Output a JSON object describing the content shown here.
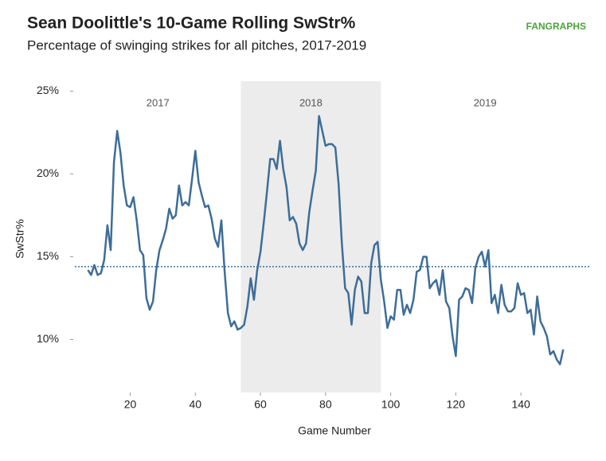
{
  "chart_data": {
    "type": "line",
    "title": "Sean Doolittle's 10-Game Rolling SwStr%",
    "subtitle": "Percentage of swinging strikes for all pitches, 2017-2019",
    "logo": "FANGRAPHS",
    "x_label": "Game Number",
    "y_label": "SwStr%",
    "xlim": [
      3,
      161
    ],
    "ylim": [
      6.8,
      25.6
    ],
    "xticks": [
      20,
      40,
      60,
      80,
      100,
      120,
      140
    ],
    "yticks": [
      {
        "value": 10,
        "label": "10%"
      },
      {
        "value": 15,
        "label": "15%"
      },
      {
        "value": 20,
        "label": "20%"
      },
      {
        "value": 25,
        "label": "25%"
      }
    ],
    "reference_line": 14.4,
    "regions": [
      {
        "label": "2017",
        "x": [
          3,
          54
        ],
        "shaded": false
      },
      {
        "label": "2018",
        "x": [
          54,
          97
        ],
        "shaded": true
      },
      {
        "label": "2019",
        "x": [
          97,
          161
        ],
        "shaded": false
      }
    ],
    "x": [
      7,
      8,
      9,
      10,
      11,
      12,
      13,
      14,
      15,
      16,
      17,
      18,
      19,
      20,
      21,
      22,
      23,
      24,
      25,
      26,
      27,
      28,
      29,
      30,
      31,
      32,
      33,
      34,
      35,
      36,
      37,
      38,
      39,
      40,
      41,
      42,
      43,
      44,
      45,
      46,
      47,
      48,
      49,
      50,
      51,
      52,
      53,
      54,
      55,
      56,
      57,
      58,
      59,
      60,
      61,
      62,
      63,
      64,
      65,
      66,
      67,
      68,
      69,
      70,
      71,
      72,
      73,
      74,
      75,
      76,
      77,
      78,
      79,
      80,
      81,
      82,
      83,
      84,
      85,
      86,
      87,
      88,
      89,
      90,
      91,
      92,
      93,
      94,
      95,
      96,
      97,
      98,
      99,
      100,
      101,
      102,
      103,
      104,
      105,
      106,
      107,
      108,
      109,
      110,
      111,
      112,
      113,
      114,
      115,
      116,
      117,
      118,
      119,
      120,
      121,
      122,
      123,
      124,
      125,
      126,
      127,
      128,
      129,
      130,
      131,
      132,
      133,
      134,
      135,
      136,
      137,
      138,
      139,
      140,
      141,
      142,
      143,
      144,
      145,
      146,
      147,
      148,
      149,
      150,
      151,
      152,
      153
    ],
    "series": [
      {
        "name": "SwStr%",
        "color": "#3e6d99",
        "values": [
          14.2,
          13.9,
          14.5,
          13.9,
          14.0,
          14.8,
          16.9,
          15.4,
          20.7,
          22.6,
          21.3,
          19.3,
          18.1,
          18.0,
          18.6,
          17.2,
          15.4,
          15.1,
          12.5,
          11.8,
          12.3,
          14.2,
          15.4,
          16.0,
          16.7,
          17.9,
          17.3,
          17.5,
          19.3,
          18.1,
          18.3,
          18.1,
          19.7,
          21.4,
          19.5,
          18.7,
          18.0,
          18.1,
          17.3,
          16.1,
          15.6,
          17.2,
          14.1,
          11.6,
          10.8,
          11.1,
          10.6,
          10.7,
          10.9,
          12.0,
          13.7,
          12.4,
          14.2,
          15.3,
          17.0,
          18.9,
          20.9,
          20.9,
          20.3,
          22.0,
          20.3,
          19.2,
          17.2,
          17.4,
          17.0,
          15.8,
          15.4,
          15.8,
          17.7,
          19.0,
          20.2,
          23.5,
          22.6,
          21.7,
          21.8,
          21.8,
          21.6,
          19.4,
          15.8,
          13.1,
          12.8,
          10.9,
          13.0,
          13.8,
          13.5,
          11.6,
          11.6,
          14.6,
          15.7,
          15.9,
          13.6,
          12.3,
          10.7,
          11.4,
          11.2,
          13.0,
          13.0,
          11.5,
          12.1,
          11.6,
          12.4,
          14.1,
          14.2,
          15.0,
          15.0,
          13.1,
          13.4,
          13.6,
          12.7,
          14.2,
          12.3,
          11.9,
          10.2,
          9.0,
          12.4,
          12.6,
          13.1,
          13.0,
          12.2,
          14.3,
          15.0,
          15.3,
          14.4,
          15.4,
          12.2,
          12.7,
          11.6,
          13.3,
          12.1,
          11.7,
          11.7,
          11.9,
          13.4,
          12.7,
          12.8,
          11.6,
          11.8,
          10.3,
          12.6,
          11.1,
          10.7,
          10.2,
          9.1,
          9.3,
          8.8,
          8.5,
          9.4
        ]
      }
    ]
  }
}
